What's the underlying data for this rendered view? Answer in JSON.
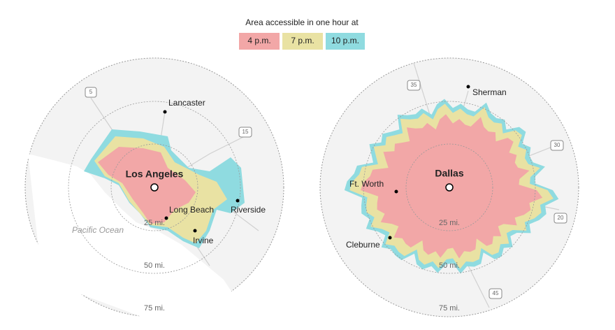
{
  "legend": {
    "title": "Area accessible in one hour at",
    "items": [
      {
        "label": "4 p.m.",
        "color": "#f2a7a7"
      },
      {
        "label": "7 p.m.",
        "color": "#e9e2a3"
      },
      {
        "label": "10 p.m.",
        "color": "#8fdbe0"
      }
    ]
  },
  "maps": [
    {
      "city": "Los Angeles",
      "places": [
        "Lancaster",
        "Long Beach",
        "Riverside",
        "Irvine"
      ],
      "water": "Pacific Ocean",
      "rings": [
        "25 mi.",
        "50 mi.",
        "75 mi."
      ],
      "highways": [
        "5",
        "15"
      ]
    },
    {
      "city": "Dallas",
      "places": [
        "Sherman",
        "Ft. Worth",
        "Cleburne"
      ],
      "rings": [
        "25 mi.",
        "50 mi.",
        "75 mi."
      ],
      "highways": [
        "35",
        "30",
        "20",
        "45"
      ]
    }
  ]
}
